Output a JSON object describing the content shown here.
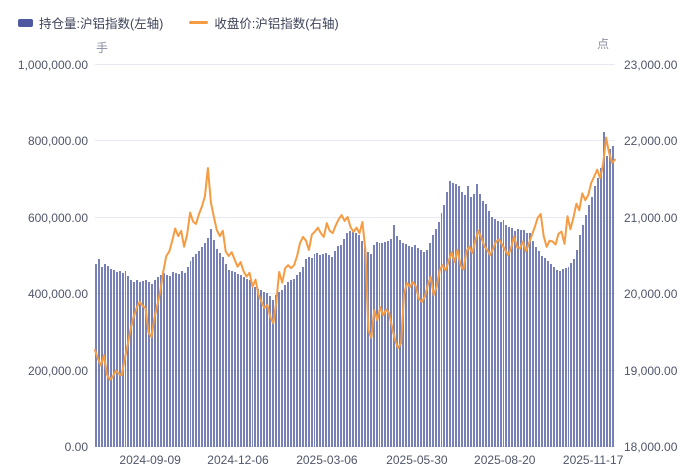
{
  "colors": {
    "bar": "#7781b8",
    "line": "#f59b42",
    "legend_bar_swatch": "#4d58a0",
    "grid": "#e9e9f3",
    "axis_text": "#50566a",
    "legend_text": "#3d4358",
    "unit_text": "#8b90a2",
    "background": "#ffffff"
  },
  "legend": {
    "open_interest_label": "持仓量:沪铝指数(左轴)",
    "close_price_label": "收盘价:沪铝指数(右轴)"
  },
  "units": {
    "left": "手",
    "right": "点"
  },
  "chart_data": {
    "type": "bar+line",
    "title": "",
    "legend_position": "top-left",
    "grid": true,
    "x_tick_labels": [
      "2024-09-09",
      "2024-12-06",
      "2025-03-06",
      "2025-05-30",
      "2025-08-20",
      "2025-11-17"
    ],
    "x_tick_pos_pct": [
      10.6,
      27.5,
      44.6,
      61.9,
      78.8,
      95.8
    ],
    "left_axis": {
      "label": "手",
      "min": 0,
      "max": 1000000,
      "ticks": [
        "0.00",
        "200,000.00",
        "400,000.00",
        "600,000.00",
        "800,000.00",
        "1,000,000.00"
      ]
    },
    "right_axis": {
      "label": "点",
      "min": 18000,
      "max": 23000,
      "ticks": [
        "18,000.00",
        "19,000.00",
        "20,000.00",
        "21,000.00",
        "22,000.00",
        "23,000.00"
      ]
    },
    "series": [
      {
        "name": "持仓量:沪铝指数(左轴)",
        "type": "bar",
        "axis": "left",
        "values": [
          480000,
          492000,
          472000,
          478000,
          474000,
          466000,
          463000,
          459000,
          462000,
          455000,
          461000,
          447000,
          436000,
          433000,
          438000,
          431000,
          435000,
          437000,
          433000,
          428000,
          438000,
          444000,
          451000,
          456000,
          450000,
          447000,
          458000,
          455000,
          452000,
          461000,
          455000,
          470000,
          488000,
          497000,
          504000,
          514000,
          524000,
          534000,
          548000,
          570000,
          542000,
          519000,
          508000,
          498000,
          478000,
          464000,
          461000,
          457000,
          452000,
          450000,
          445000,
          441000,
          437000,
          430000,
          420000,
          414000,
          410000,
          407000,
          404000,
          396000,
          386000,
          398000,
          406000,
          411000,
          425000,
          431000,
          436000,
          441000,
          449000,
          457000,
          470000,
          491000,
          497000,
          496000,
          504000,
          508000,
          503000,
          506000,
          508000,
          502000,
          498000,
          512000,
          526000,
          530000,
          545000,
          561000,
          566000,
          562000,
          559000,
          556000,
          540000,
          521000,
          511000,
          505000,
          529000,
          536000,
          534000,
          533000,
          536000,
          538000,
          545000,
          581000,
          552000,
          541000,
          535000,
          532000,
          526000,
          524000,
          528000,
          521000,
          516000,
          511000,
          517000,
          533000,
          556000,
          571000,
          589000,
          612000,
          634000,
          668000,
          697000,
          691000,
          689000,
          682000,
          667000,
          661000,
          684000,
          655000,
          662000,
          689000,
          663000,
          643000,
          637000,
          618000,
          603000,
          596000,
          591000,
          590000,
          593000,
          582000,
          577000,
          573000,
          566000,
          571000,
          568000,
          567000,
          559000,
          561000,
          540000,
          524000,
          512000,
          501000,
          494000,
          487000,
          478000,
          471000,
          464000,
          462000,
          466000,
          468000,
          471000,
          481000,
          492000,
          517000,
          556000,
          581000,
          608000,
          634000,
          655000,
          684000,
          703000,
          731000,
          824000,
          762000,
          779000,
          787000
        ]
      },
      {
        "name": "收盘价:沪铝指数(右轴)",
        "type": "line",
        "axis": "right",
        "values": [
          19270,
          19150,
          19070,
          19200,
          18950,
          18880,
          18920,
          19000,
          18960,
          18940,
          19150,
          19340,
          19550,
          19700,
          19820,
          19900,
          19850,
          19820,
          19500,
          19440,
          19690,
          19860,
          20050,
          20300,
          20500,
          20560,
          20700,
          20860,
          20760,
          20830,
          20620,
          20780,
          21070,
          20950,
          20920,
          21050,
          21150,
          21280,
          21650,
          21200,
          21010,
          20840,
          20760,
          20830,
          20560,
          20500,
          20550,
          20450,
          20360,
          20420,
          20300,
          20230,
          20280,
          20100,
          20190,
          20000,
          19900,
          19820,
          19860,
          19700,
          19620,
          19900,
          20290,
          20150,
          20340,
          20380,
          20340,
          20380,
          20500,
          20670,
          20750,
          20700,
          20580,
          20780,
          20820,
          20870,
          20800,
          20750,
          20930,
          20830,
          20800,
          20900,
          20980,
          21035,
          20960,
          21010,
          20880,
          20815,
          20870,
          20800,
          20945,
          20580,
          19530,
          19430,
          19790,
          19660,
          19830,
          19725,
          19800,
          19750,
          19560,
          19400,
          19295,
          19360,
          20000,
          20145,
          20095,
          20160,
          20100,
          19940,
          19900,
          19965,
          20120,
          20225,
          19990,
          20100,
          20315,
          20380,
          20310,
          20430,
          20550,
          20420,
          20580,
          20380,
          20325,
          20560,
          20620,
          20540,
          20700,
          20830,
          20740,
          20630,
          20580,
          20510,
          20600,
          20690,
          20715,
          20650,
          20580,
          20510,
          20600,
          20755,
          20620,
          20600,
          20690,
          20560,
          20660,
          20770,
          20880,
          21000,
          21050,
          20760,
          20620,
          20700,
          20690,
          20650,
          20790,
          20820,
          20660,
          21020,
          20850,
          21000,
          21185,
          21100,
          21320,
          21230,
          21300,
          21455,
          21540,
          21630,
          21520,
          21700,
          22050,
          21850,
          21720,
          21760
        ]
      }
    ]
  }
}
